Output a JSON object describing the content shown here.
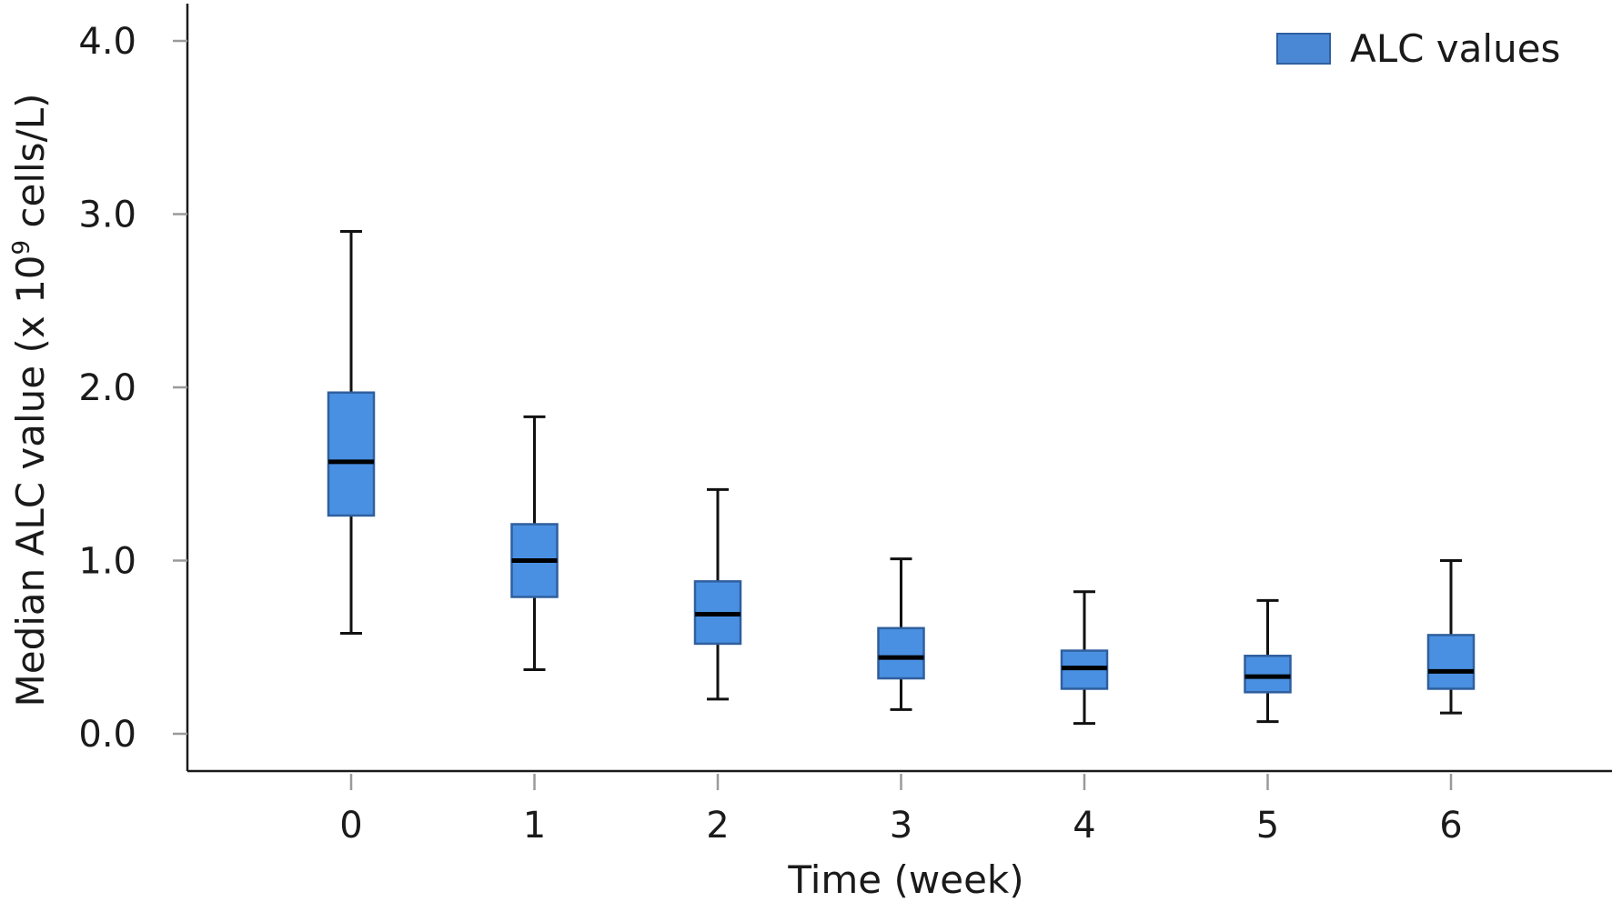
{
  "chart_data": {
    "type": "boxplot",
    "xlabel": "Time (week)",
    "ylabel": {
      "prefix": "Median ALC value (x 10",
      "superscript": "9",
      "suffix": " cells/L)"
    },
    "ylim": [
      0,
      4.0
    ],
    "yticks": [
      "0.0",
      "1.0",
      "2.0",
      "3.0",
      "4.0"
    ],
    "categories": [
      "0",
      "1",
      "2",
      "3",
      "4",
      "5",
      "6"
    ],
    "legend": {
      "label": "ALC values",
      "color": "#4a88d6",
      "position": "top-right"
    },
    "grid": false,
    "colors": {
      "box_fill": "#4a90e2",
      "box_edge": "#2f5f9e",
      "median": "#000000",
      "whisker": "#111111"
    },
    "series": [
      {
        "name": "ALC values",
        "boxes": [
          {
            "x": "0",
            "min": 0.58,
            "q1": 1.26,
            "median": 1.57,
            "q3": 1.97,
            "max": 2.9
          },
          {
            "x": "1",
            "min": 0.37,
            "q1": 0.79,
            "median": 1.0,
            "q3": 1.21,
            "max": 1.83
          },
          {
            "x": "2",
            "min": 0.2,
            "q1": 0.52,
            "median": 0.69,
            "q3": 0.88,
            "max": 1.41
          },
          {
            "x": "3",
            "min": 0.14,
            "q1": 0.32,
            "median": 0.44,
            "q3": 0.61,
            "max": 1.01
          },
          {
            "x": "4",
            "min": 0.06,
            "q1": 0.26,
            "median": 0.38,
            "q3": 0.48,
            "max": 0.82
          },
          {
            "x": "5",
            "min": 0.07,
            "q1": 0.24,
            "median": 0.33,
            "q3": 0.45,
            "max": 0.77
          },
          {
            "x": "6",
            "min": 0.12,
            "q1": 0.26,
            "median": 0.36,
            "q3": 0.57,
            "max": 1.0
          }
        ]
      }
    ]
  }
}
